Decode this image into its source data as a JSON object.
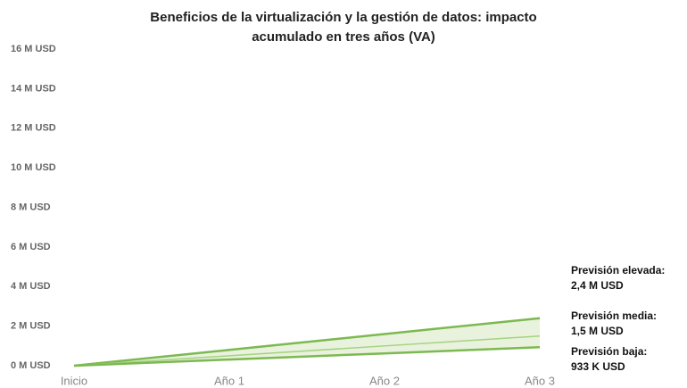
{
  "chart_data": {
    "type": "line",
    "title": [
      "Beneficios de la virtualización y la gestión de datos: impacto",
      "acumulado en tres años (VA)"
    ],
    "categories": [
      "Inicio",
      "Año 1",
      "Año 2",
      "Año 3"
    ],
    "series": [
      {
        "name": "Previsión elevada:",
        "color": "#7cb950",
        "values": [
          0,
          0.8,
          1.6,
          2.4
        ],
        "value_labels": [
          null,
          null,
          null,
          "2,4 M USD"
        ]
      },
      {
        "name": "Previsión media:",
        "color": "#a6d283",
        "values": [
          0,
          0.5,
          1.0,
          1.5
        ],
        "value_labels": [
          null,
          null,
          null,
          "1,5 M USD"
        ]
      },
      {
        "name": "Previsión baja:",
        "color": "#7cb950",
        "values": [
          0,
          0.311,
          0.622,
          0.933
        ],
        "value_labels": [
          null,
          null,
          null,
          "933 K USD"
        ]
      }
    ],
    "fill_color": "#e8f2dd",
    "ylim": [
      0,
      16
    ],
    "yticks": [
      {
        "value": 0,
        "label": "0 M USD"
      },
      {
        "value": 2,
        "label": "2 M USD"
      },
      {
        "value": 4,
        "label": "4 M USD"
      },
      {
        "value": 6,
        "label": "6 M USD"
      },
      {
        "value": 8,
        "label": "8 M USD"
      },
      {
        "value": 10,
        "label": "10 M USD"
      },
      {
        "value": 12,
        "label": "12 M USD"
      },
      {
        "value": 14,
        "label": "14 M USD"
      },
      {
        "value": 16,
        "label": "16 M USD"
      }
    ]
  }
}
